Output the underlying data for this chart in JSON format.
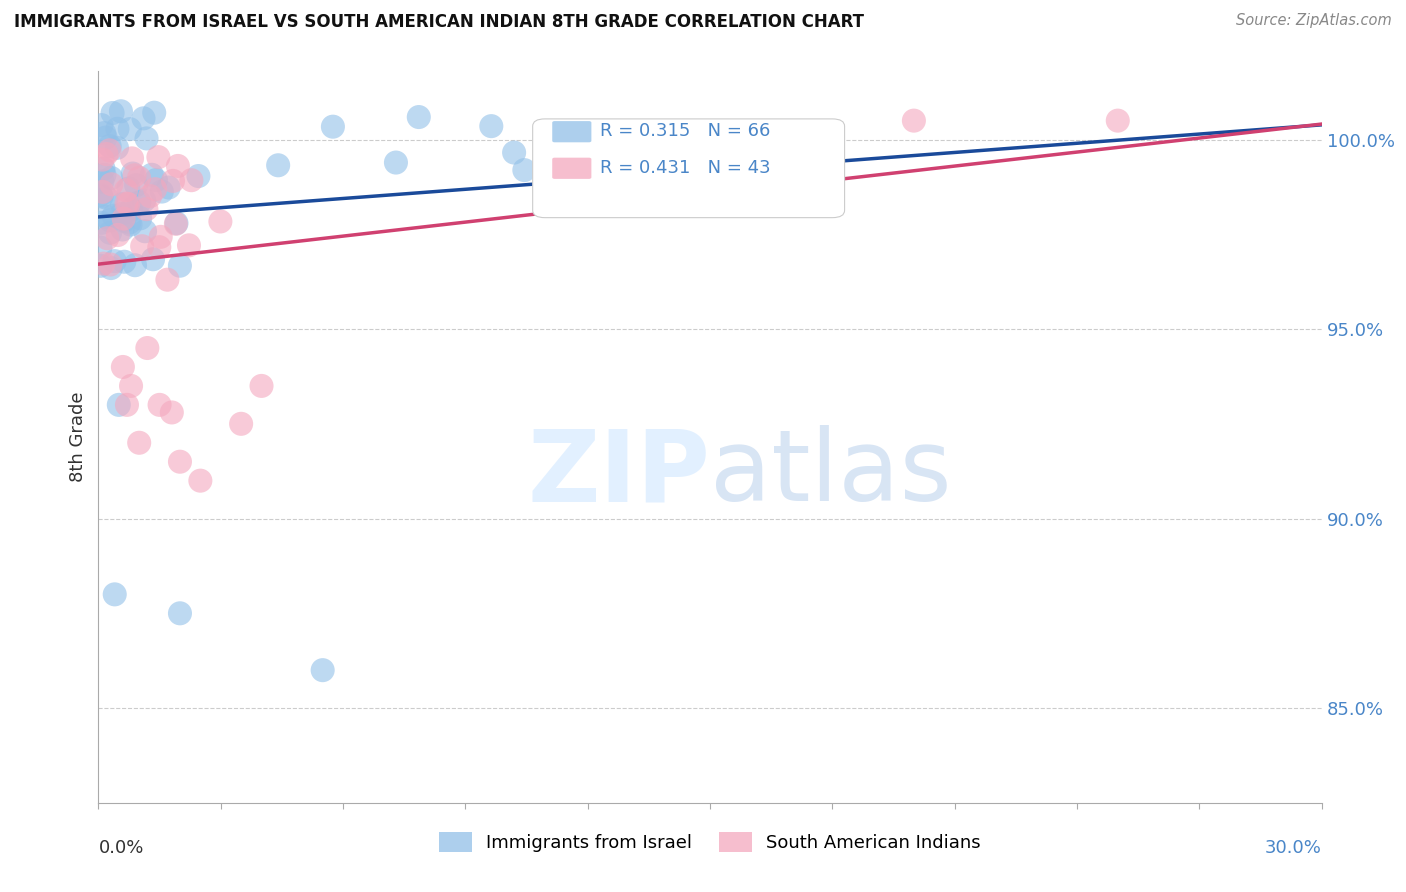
{
  "title": "IMMIGRANTS FROM ISRAEL VS SOUTH AMERICAN INDIAN 8TH GRADE CORRELATION CHART",
  "source": "Source: ZipAtlas.com",
  "ylabel": "8th Grade",
  "x_min": 0.0,
  "x_max": 30.0,
  "y_min": 82.5,
  "y_max": 101.8,
  "y_ticks": [
    85.0,
    90.0,
    95.0,
    100.0
  ],
  "y_tick_labels": [
    "85.0%",
    "90.0%",
    "95.0%",
    "100.0%"
  ],
  "right_axis_color": "#4a86c8",
  "legend_blue_label": "Immigrants from Israel",
  "legend_pink_label": "South American Indians",
  "R_blue": 0.315,
  "N_blue": 66,
  "R_pink": 0.431,
  "N_pink": 43,
  "blue_color": "#92c0e8",
  "pink_color": "#f4a8be",
  "blue_line_color": "#1a4a9a",
  "pink_line_color": "#d04070"
}
